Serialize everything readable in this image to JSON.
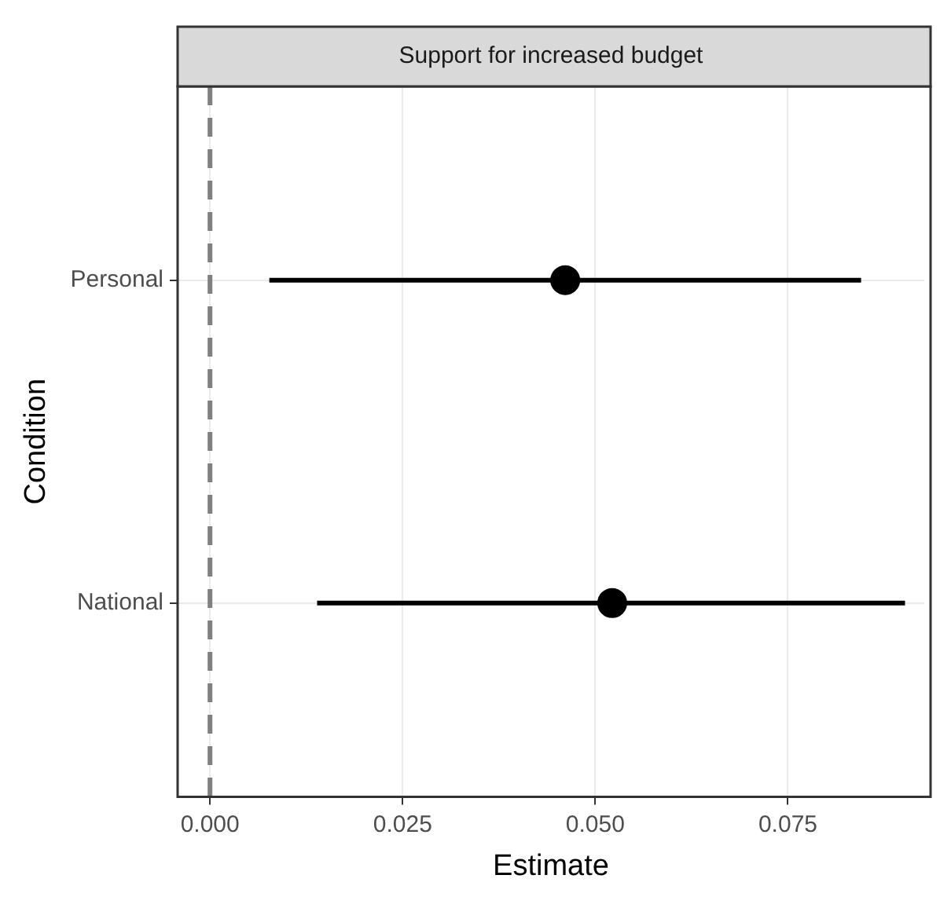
{
  "chart_data": {
    "type": "scatter",
    "orientation": "horizontal",
    "title": "Support for increased budget",
    "xlabel": "Estimate",
    "ylabel": "Condition",
    "categories": [
      "Personal",
      "National"
    ],
    "series": [
      {
        "color": "#000000",
        "values": [
          0.0461,
          0.0522
        ],
        "errors": [
          [
            0.0077,
            0.0845
          ],
          [
            0.0139,
            0.0902
          ]
        ]
      }
    ],
    "xlim": [
      -0.0042,
      0.0927
    ],
    "xticks": [
      {
        "value": 0,
        "label": "0.000"
      },
      {
        "value": 0.025,
        "label": "0.025"
      },
      {
        "value": 0.05,
        "label": "0.050"
      },
      {
        "value": 0.075,
        "label": "0.075"
      }
    ],
    "ref_lines": [
      {
        "axis": "x",
        "value": 0,
        "color": "#808080",
        "line_style": "dashed"
      }
    ],
    "grid": true,
    "legend": false,
    "marker": "circle"
  }
}
